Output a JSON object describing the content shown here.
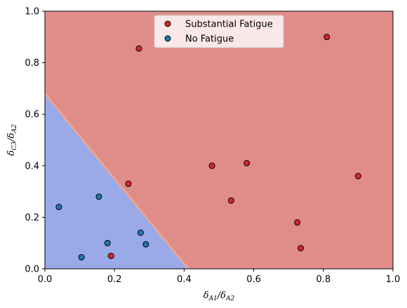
{
  "chart_data": {
    "type": "scatter",
    "title": "",
    "xlabel": {
      "main": "δ",
      "sub1": "A1",
      "sep": "/δ",
      "sub2": "A2"
    },
    "ylabel": {
      "main": "δ",
      "sub1": "C3",
      "sep": "/δ",
      "sub2": "A2"
    },
    "xlim": [
      0,
      1
    ],
    "ylim": [
      0,
      1
    ],
    "xticks": [
      0.0,
      0.2,
      0.4,
      0.6,
      0.8,
      1.0
    ],
    "yticks": [
      0.0,
      0.2,
      0.4,
      0.6,
      0.8,
      1.0
    ],
    "xtick_labels": [
      "0.0",
      "0.2",
      "0.4",
      "0.6",
      "0.8",
      "1.0"
    ],
    "ytick_labels": [
      "0.0",
      "0.2",
      "0.4",
      "0.6",
      "0.8",
      "1.0"
    ],
    "grid": false,
    "legend_position": "top-center",
    "decision_regions": {
      "classes": [
        "No Fatigue",
        "Substantial Fatigue"
      ],
      "colors": {
        "No Fatigue": "#9aaae9",
        "Substantial Fatigue": "#e08d89"
      },
      "boundary_color": "#f5a78a",
      "boundary_points": [
        [
          0.0,
          0.68
        ],
        [
          0.4,
          0.02
        ],
        [
          0.415,
          0.0
        ]
      ]
    },
    "series": [
      {
        "name": "Substantial Fatigue",
        "color": "#d62728",
        "points": [
          {
            "x": 0.27,
            "y": 0.855
          },
          {
            "x": 0.81,
            "y": 0.9
          },
          {
            "x": 0.48,
            "y": 0.4
          },
          {
            "x": 0.58,
            "y": 0.41
          },
          {
            "x": 0.24,
            "y": 0.33
          },
          {
            "x": 0.9,
            "y": 0.36
          },
          {
            "x": 0.535,
            "y": 0.265
          },
          {
            "x": 0.725,
            "y": 0.18
          },
          {
            "x": 0.735,
            "y": 0.08
          },
          {
            "x": 0.19,
            "y": 0.05
          }
        ]
      },
      {
        "name": "No Fatigue",
        "color": "#1f77b4",
        "points": [
          {
            "x": 0.04,
            "y": 0.24
          },
          {
            "x": 0.155,
            "y": 0.28
          },
          {
            "x": 0.275,
            "y": 0.14
          },
          {
            "x": 0.18,
            "y": 0.1
          },
          {
            "x": 0.29,
            "y": 0.095
          },
          {
            "x": 0.105,
            "y": 0.045
          }
        ]
      }
    ]
  }
}
